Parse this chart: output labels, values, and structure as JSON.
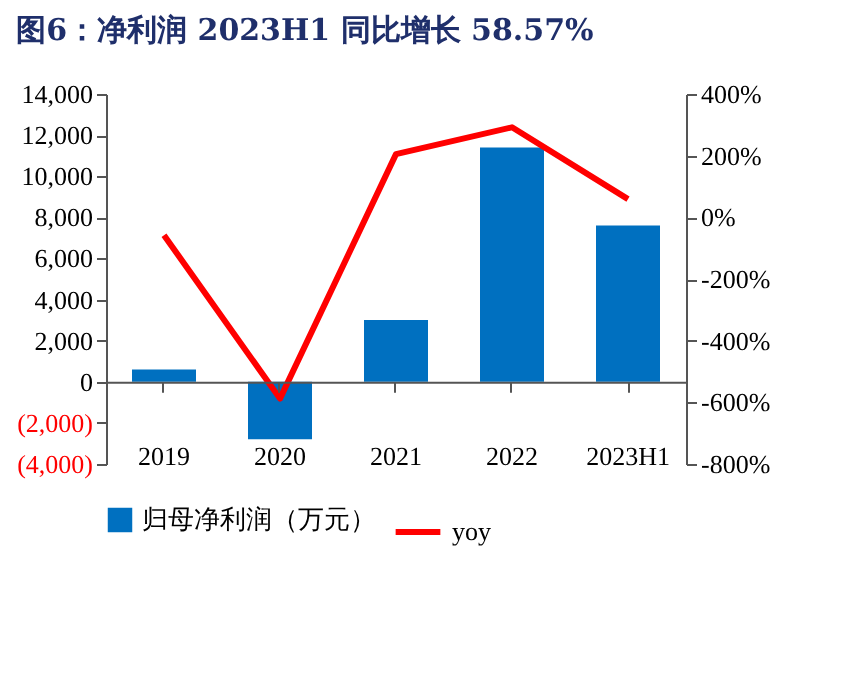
{
  "chart_data": {
    "type": "bar",
    "title": "图6：净利润 2023H1 同比增长 58.57%",
    "categories": [
      "2019",
      "2020",
      "2021",
      "2022",
      "2023H1"
    ],
    "series": [
      {
        "name": "归母净利润（万元）",
        "color": "#0070c0",
        "values": [
          600,
          -2800,
          3000,
          11400,
          7600
        ]
      },
      {
        "name": "yoy",
        "type": "line",
        "axis": "y2",
        "color": "#ff0000",
        "values": [
          -58,
          -588,
          205,
          292,
          59
        ]
      }
    ],
    "ylim": [
      -4000,
      14000
    ],
    "yticks": [
      {
        "value": -4000,
        "label": "(4,000)"
      },
      {
        "value": -2000,
        "label": "(2,000)"
      },
      0,
      {
        "value": 2000,
        "label": "2,000"
      },
      {
        "value": 4000,
        "label": "4,000"
      },
      {
        "value": 6000,
        "label": "6,000"
      },
      {
        "value": 8000,
        "label": "8,000"
      },
      {
        "value": 10000,
        "label": "10,000"
      },
      {
        "value": 12000,
        "label": "12,000"
      },
      {
        "value": 14000,
        "label": "14,000"
      }
    ],
    "y2lim": [
      -800,
      400
    ],
    "y2ticks": [
      {
        "value": -800,
        "label": "-800%"
      },
      {
        "value": -600,
        "label": "-600%"
      },
      {
        "value": -400,
        "label": "-400%"
      },
      {
        "value": -200,
        "label": "-200%"
      },
      {
        "value": 0,
        "label": "0%"
      },
      {
        "value": 200,
        "label": "200%"
      },
      {
        "value": 400,
        "label": "400%"
      }
    ],
    "legend": "bottom",
    "grid": false
  }
}
